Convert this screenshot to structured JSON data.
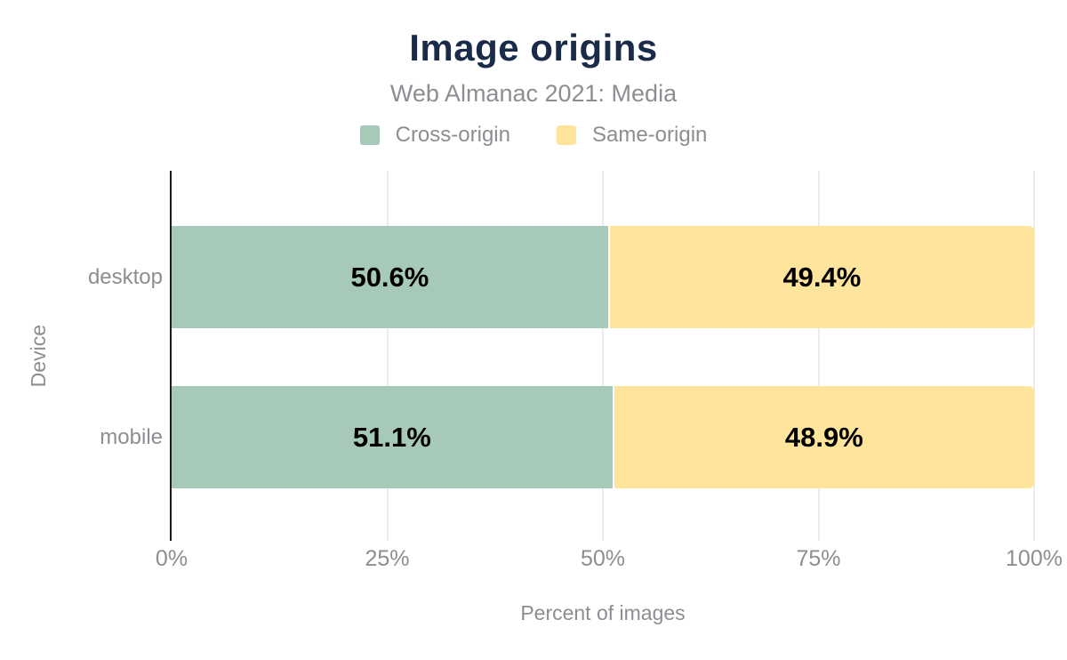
{
  "chart_data": {
    "type": "bar",
    "orientation": "horizontal",
    "stacked": true,
    "title": "Image origins",
    "subtitle": "Web Almanac 2021: Media",
    "categories": [
      "desktop",
      "mobile"
    ],
    "series": [
      {
        "name": "Cross-origin",
        "color": "#a6c9b8",
        "values": [
          50.6,
          51.1
        ],
        "labels": [
          "50.6%",
          "51.1%"
        ]
      },
      {
        "name": "Same-origin",
        "color": "#ffe49c",
        "values": [
          49.4,
          48.9
        ],
        "labels": [
          "49.4%",
          "48.9%"
        ]
      }
    ],
    "xlabel": "Percent of images",
    "ylabel": "Device",
    "xlim": [
      0,
      100
    ],
    "x_ticks": [
      {
        "label": "0%",
        "value": 0
      },
      {
        "label": "25%",
        "value": 25
      },
      {
        "label": "50%",
        "value": 50
      },
      {
        "label": "75%",
        "value": 75
      },
      {
        "label": "100%",
        "value": 100
      }
    ],
    "grid": true,
    "legend_position": "top"
  },
  "colors": {
    "background": "#ffffff",
    "title_text": "#1a2b49",
    "muted_text": "#8b8e92",
    "grid_line": "#ececec",
    "axis_line": "#1c1c1c",
    "value_label": "#000000"
  }
}
